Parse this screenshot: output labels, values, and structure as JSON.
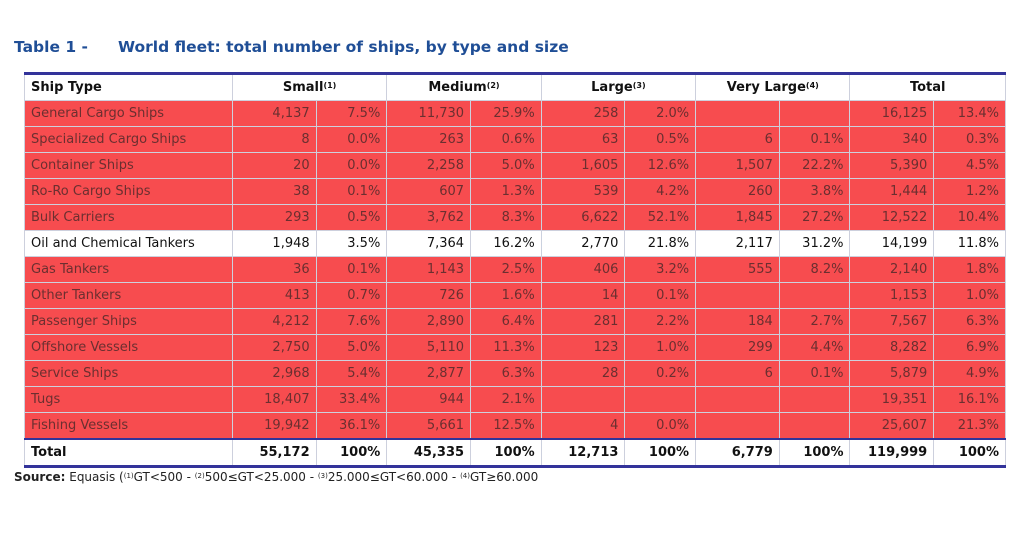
{
  "title": {
    "label": "Table 1 -",
    "text": "World fleet: total number of ships, by type and size"
  },
  "headers": {
    "ship_type": "Ship Type",
    "groups": [
      {
        "label": "Small",
        "note": "(1)"
      },
      {
        "label": "Medium",
        "note": "(2)"
      },
      {
        "label": "Large",
        "note": "(3)"
      },
      {
        "label": "Very Large",
        "note": "(4)"
      },
      {
        "label": "Total",
        "note": ""
      }
    ]
  },
  "rows": [
    {
      "highlight": true,
      "cells": [
        "General Cargo Ships",
        "4,137",
        "7.5%",
        "11,730",
        "25.9%",
        "258",
        "2.0%",
        "",
        "",
        "16,125",
        "13.4%"
      ]
    },
    {
      "highlight": true,
      "cells": [
        "Specialized Cargo Ships",
        "8",
        "0.0%",
        "263",
        "0.6%",
        "63",
        "0.5%",
        "6",
        "0.1%",
        "340",
        "0.3%"
      ]
    },
    {
      "highlight": true,
      "cells": [
        "Container Ships",
        "20",
        "0.0%",
        "2,258",
        "5.0%",
        "1,605",
        "12.6%",
        "1,507",
        "22.2%",
        "5,390",
        "4.5%"
      ]
    },
    {
      "highlight": true,
      "cells": [
        "Ro-Ro Cargo Ships",
        "38",
        "0.1%",
        "607",
        "1.3%",
        "539",
        "4.2%",
        "260",
        "3.8%",
        "1,444",
        "1.2%"
      ]
    },
    {
      "highlight": true,
      "cells": [
        "Bulk Carriers",
        "293",
        "0.5%",
        "3,762",
        "8.3%",
        "6,622",
        "52.1%",
        "1,845",
        "27.2%",
        "12,522",
        "10.4%"
      ]
    },
    {
      "highlight": false,
      "cells": [
        "Oil and Chemical Tankers",
        "1,948",
        "3.5%",
        "7,364",
        "16.2%",
        "2,770",
        "21.8%",
        "2,117",
        "31.2%",
        "14,199",
        "11.8%"
      ]
    },
    {
      "highlight": true,
      "cells": [
        "Gas Tankers",
        "36",
        "0.1%",
        "1,143",
        "2.5%",
        "406",
        "3.2%",
        "555",
        "8.2%",
        "2,140",
        "1.8%"
      ]
    },
    {
      "highlight": true,
      "cells": [
        "Other Tankers",
        "413",
        "0.7%",
        "726",
        "1.6%",
        "14",
        "0.1%",
        "",
        "",
        "1,153",
        "1.0%"
      ]
    },
    {
      "highlight": true,
      "cells": [
        "Passenger Ships",
        "4,212",
        "7.6%",
        "2,890",
        "6.4%",
        "281",
        "2.2%",
        "184",
        "2.7%",
        "7,567",
        "6.3%"
      ]
    },
    {
      "highlight": true,
      "cells": [
        "Offshore Vessels",
        "2,750",
        "5.0%",
        "5,110",
        "11.3%",
        "123",
        "1.0%",
        "299",
        "4.4%",
        "8,282",
        "6.9%"
      ]
    },
    {
      "highlight": true,
      "cells": [
        "Service Ships",
        "2,968",
        "5.4%",
        "2,877",
        "6.3%",
        "28",
        "0.2%",
        "6",
        "0.1%",
        "5,879",
        "4.9%"
      ]
    },
    {
      "highlight": true,
      "cells": [
        "Tugs",
        "18,407",
        "33.4%",
        "944",
        "2.1%",
        "",
        "",
        "",
        "",
        "19,351",
        "16.1%"
      ]
    },
    {
      "highlight": true,
      "cells": [
        "Fishing Vessels",
        "19,942",
        "36.1%",
        "5,661",
        "12.5%",
        "4",
        "0.0%",
        "",
        "",
        "25,607",
        "21.3%"
      ]
    }
  ],
  "total_row": [
    "Total",
    "55,172",
    "100%",
    "45,335",
    "100%",
    "12,713",
    "100%",
    "6,779",
    "100%",
    "119,999",
    "100%"
  ],
  "footnote": {
    "label": "Source:",
    "source": "Equasis",
    "notes": [
      {
        "mark": "(1)",
        "text": "GT<500"
      },
      {
        "mark": "(2)",
        "text": "500≤GT<25.000"
      },
      {
        "mark": "(3)",
        "text": "25.000≤GT<60.000"
      },
      {
        "mark": "(4)",
        "text": "GT≥60.000"
      }
    ]
  },
  "colors": {
    "title": "#1f4e96",
    "highlight": "#f74c4f",
    "rule": "#33339a"
  }
}
